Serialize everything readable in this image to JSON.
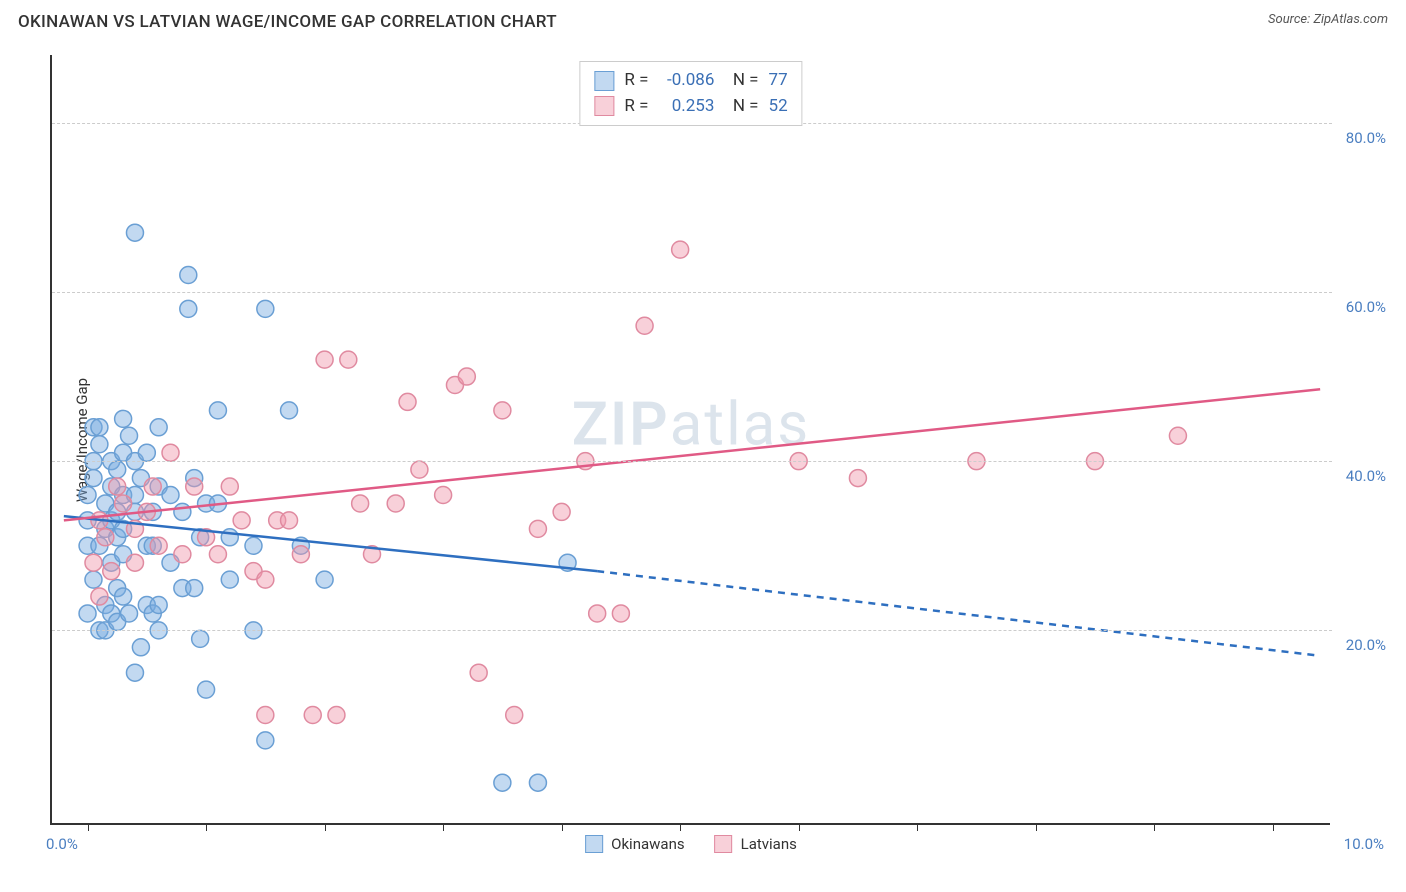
{
  "title": "OKINAWAN VS LATVIAN WAGE/INCOME GAP CORRELATION CHART",
  "source_label": "Source:",
  "source_name": "ZipAtlas.com",
  "watermark_a": "ZIP",
  "watermark_b": "atlas",
  "y_axis_label": "Wage/Income Gap",
  "chart": {
    "type": "scatter",
    "background_color": "#ffffff",
    "grid_color": "#cccccc",
    "axis_color": "#333333",
    "tick_label_color": "#4a7ec0",
    "x_range": [
      -0.3,
      10.5
    ],
    "y_range": [
      -3,
      88
    ],
    "x_start_label": "0.0%",
    "x_end_label": "10.0%",
    "x_ticks_minor": [
      0,
      1,
      2,
      3,
      4,
      5,
      6,
      7,
      8,
      9,
      10
    ],
    "y_gridlines": [
      {
        "value": 20,
        "label": "20.0%"
      },
      {
        "value": 40,
        "label": "40.0%"
      },
      {
        "value": 60,
        "label": "60.0%"
      },
      {
        "value": 80,
        "label": "80.0%"
      }
    ],
    "marker_radius": 8.5,
    "marker_stroke_width": 1.5,
    "series": {
      "okinawans": {
        "label": "Okinawans",
        "fill": "rgba(120,170,225,0.45)",
        "stroke": "#6a9fd4",
        "R": "-0.086",
        "N": "77",
        "trend": {
          "solid": {
            "x1": -0.2,
            "y1": 33.5,
            "x2": 4.3,
            "y2": 27.0
          },
          "dashed": {
            "x1": 4.3,
            "y1": 27.0,
            "x2": 10.4,
            "y2": 17.0
          },
          "color": "#2e6fc0",
          "width": 2.5
        },
        "points": [
          [
            0.0,
            36
          ],
          [
            0.0,
            33
          ],
          [
            0.0,
            30
          ],
          [
            0.0,
            22
          ],
          [
            0.05,
            44
          ],
          [
            0.05,
            40
          ],
          [
            0.05,
            38
          ],
          [
            0.05,
            26
          ],
          [
            0.1,
            44
          ],
          [
            0.1,
            42
          ],
          [
            0.1,
            30
          ],
          [
            0.1,
            20
          ],
          [
            0.15,
            35
          ],
          [
            0.15,
            32
          ],
          [
            0.15,
            23
          ],
          [
            0.15,
            20
          ],
          [
            0.2,
            40
          ],
          [
            0.2,
            37
          ],
          [
            0.2,
            33
          ],
          [
            0.2,
            28
          ],
          [
            0.2,
            22
          ],
          [
            0.25,
            39
          ],
          [
            0.25,
            34
          ],
          [
            0.25,
            31
          ],
          [
            0.25,
            25
          ],
          [
            0.25,
            21
          ],
          [
            0.3,
            45
          ],
          [
            0.3,
            41
          ],
          [
            0.3,
            36
          ],
          [
            0.3,
            32
          ],
          [
            0.3,
            29
          ],
          [
            0.3,
            24
          ],
          [
            0.35,
            43
          ],
          [
            0.35,
            22
          ],
          [
            0.4,
            67
          ],
          [
            0.4,
            40
          ],
          [
            0.4,
            36
          ],
          [
            0.4,
            34
          ],
          [
            0.4,
            15
          ],
          [
            0.45,
            38
          ],
          [
            0.45,
            18
          ],
          [
            0.5,
            41
          ],
          [
            0.5,
            30
          ],
          [
            0.5,
            23
          ],
          [
            0.55,
            34
          ],
          [
            0.55,
            30
          ],
          [
            0.55,
            22
          ],
          [
            0.6,
            44
          ],
          [
            0.6,
            37
          ],
          [
            0.6,
            20
          ],
          [
            0.6,
            23
          ],
          [
            0.7,
            36
          ],
          [
            0.7,
            28
          ],
          [
            0.8,
            34
          ],
          [
            0.8,
            25
          ],
          [
            0.85,
            62
          ],
          [
            0.85,
            58
          ],
          [
            0.9,
            38
          ],
          [
            0.9,
            25
          ],
          [
            0.95,
            31
          ],
          [
            0.95,
            19
          ],
          [
            1.0,
            35
          ],
          [
            1.0,
            13
          ],
          [
            1.1,
            46
          ],
          [
            1.1,
            35
          ],
          [
            1.2,
            31
          ],
          [
            1.2,
            26
          ],
          [
            1.4,
            30
          ],
          [
            1.4,
            20
          ],
          [
            1.5,
            58
          ],
          [
            1.5,
            7
          ],
          [
            1.7,
            46
          ],
          [
            1.8,
            30
          ],
          [
            2.0,
            26
          ],
          [
            3.5,
            2
          ],
          [
            3.8,
            2
          ],
          [
            4.05,
            28
          ]
        ]
      },
      "latvians": {
        "label": "Latvians",
        "fill": "rgba(240,150,170,0.45)",
        "stroke": "#e08aa0",
        "R": "0.253",
        "N": "52",
        "trend": {
          "solid": {
            "x1": -0.2,
            "y1": 33.0,
            "x2": 10.4,
            "y2": 48.5
          },
          "color": "#e05a85",
          "width": 2.5
        },
        "points": [
          [
            0.05,
            28
          ],
          [
            0.1,
            24
          ],
          [
            0.1,
            33
          ],
          [
            0.15,
            31
          ],
          [
            0.2,
            27
          ],
          [
            0.25,
            37
          ],
          [
            0.3,
            35
          ],
          [
            0.4,
            28
          ],
          [
            0.4,
            32
          ],
          [
            0.5,
            34
          ],
          [
            0.55,
            37
          ],
          [
            0.6,
            30
          ],
          [
            0.7,
            41
          ],
          [
            0.8,
            29
          ],
          [
            0.9,
            37
          ],
          [
            1.0,
            31
          ],
          [
            1.1,
            29
          ],
          [
            1.2,
            37
          ],
          [
            1.3,
            33
          ],
          [
            1.4,
            27
          ],
          [
            1.5,
            26
          ],
          [
            1.5,
            10
          ],
          [
            1.6,
            33
          ],
          [
            1.7,
            33
          ],
          [
            1.8,
            29
          ],
          [
            1.9,
            10
          ],
          [
            2.0,
            52
          ],
          [
            2.1,
            10
          ],
          [
            2.2,
            52
          ],
          [
            2.3,
            35
          ],
          [
            2.4,
            29
          ],
          [
            2.6,
            35
          ],
          [
            2.7,
            47
          ],
          [
            2.8,
            39
          ],
          [
            3.0,
            36
          ],
          [
            3.1,
            49
          ],
          [
            3.2,
            50
          ],
          [
            3.3,
            15
          ],
          [
            3.5,
            46
          ],
          [
            3.6,
            10
          ],
          [
            3.8,
            32
          ],
          [
            4.0,
            34
          ],
          [
            4.2,
            40
          ],
          [
            4.3,
            22
          ],
          [
            4.5,
            22
          ],
          [
            4.7,
            56
          ],
          [
            5.0,
            65
          ],
          [
            6.0,
            40
          ],
          [
            6.5,
            38
          ],
          [
            7.5,
            40
          ],
          [
            8.5,
            40
          ],
          [
            9.2,
            43
          ]
        ]
      }
    }
  }
}
